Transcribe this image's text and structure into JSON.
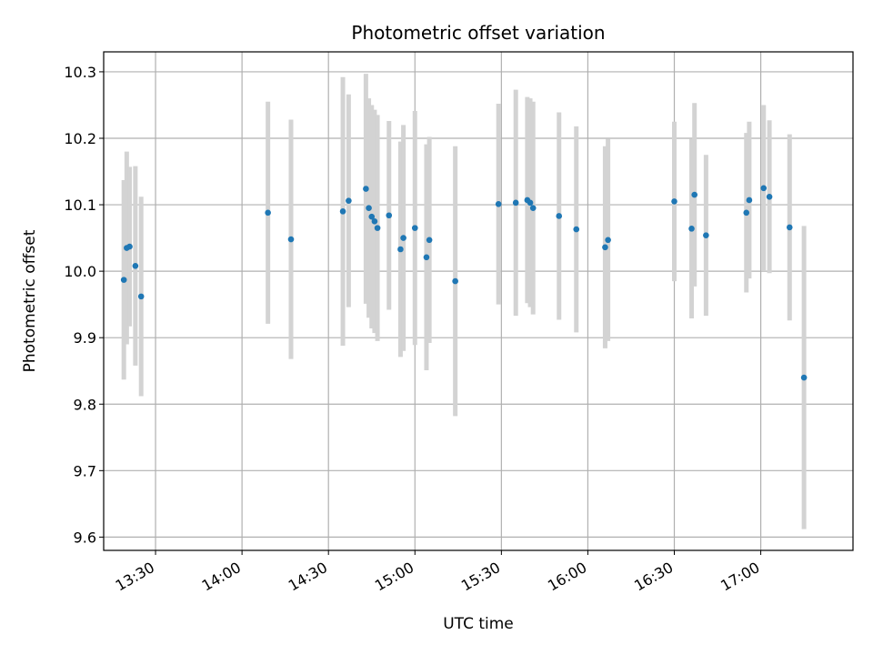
{
  "chart_data": {
    "type": "scatter",
    "title": "Photometric offset variation",
    "xlabel": "UTC time",
    "ylabel": "Photometric offset",
    "x_ticks": [
      "13:30",
      "14:00",
      "14:30",
      "15:00",
      "15:30",
      "16:00",
      "16:30",
      "17:00"
    ],
    "y_ticks": [
      "9.6",
      "9.7",
      "9.8",
      "9.9",
      "10.0",
      "10.1",
      "10.2",
      "10.3"
    ],
    "xlim": [
      "13:12",
      "17:32"
    ],
    "ylim": [
      9.58,
      10.33
    ],
    "grid": true,
    "colors": {
      "point": "#1f77b4",
      "errorbar": "#d3d3d3",
      "grid": "#b0b0b0"
    },
    "series": [
      {
        "points": [
          {
            "x": "13:19",
            "y": 9.987,
            "err": 0.15
          },
          {
            "x": "13:20",
            "y": 10.035,
            "err": 0.145
          },
          {
            "x": "13:21",
            "y": 10.037,
            "err": 0.12
          },
          {
            "x": "13:23",
            "y": 10.008,
            "err": 0.15
          },
          {
            "x": "13:25",
            "y": 9.962,
            "err": 0.15
          },
          {
            "x": "14:09",
            "y": 10.088,
            "err": 0.167
          },
          {
            "x": "14:17",
            "y": 10.048,
            "err": 0.18
          },
          {
            "x": "14:35",
            "y": 10.09,
            "err": 0.202
          },
          {
            "x": "14:37",
            "y": 10.106,
            "err": 0.16
          },
          {
            "x": "14:43",
            "y": 10.124,
            "err": 0.173
          },
          {
            "x": "14:44",
            "y": 10.095,
            "err": 0.165
          },
          {
            "x": "14:45",
            "y": 10.082,
            "err": 0.168
          },
          {
            "x": "14:46",
            "y": 10.075,
            "err": 0.168
          },
          {
            "x": "14:47",
            "y": 10.065,
            "err": 0.17
          },
          {
            "x": "14:51",
            "y": 10.084,
            "err": 0.142
          },
          {
            "x": "14:55",
            "y": 10.033,
            "err": 0.162
          },
          {
            "x": "14:56",
            "y": 10.05,
            "err": 0.17
          },
          {
            "x": "15:00",
            "y": 10.065,
            "err": 0.176
          },
          {
            "x": "15:04",
            "y": 10.021,
            "err": 0.17
          },
          {
            "x": "15:05",
            "y": 10.047,
            "err": 0.155
          },
          {
            "x": "15:14",
            "y": 9.985,
            "err": 0.203
          },
          {
            "x": "15:29",
            "y": 10.101,
            "err": 0.151
          },
          {
            "x": "15:35",
            "y": 10.103,
            "err": 0.17
          },
          {
            "x": "15:39",
            "y": 10.107,
            "err": 0.155
          },
          {
            "x": "15:40",
            "y": 10.103,
            "err": 0.157
          },
          {
            "x": "15:41",
            "y": 10.095,
            "err": 0.16
          },
          {
            "x": "15:50",
            "y": 10.083,
            "err": 0.156
          },
          {
            "x": "15:56",
            "y": 10.063,
            "err": 0.155
          },
          {
            "x": "16:06",
            "y": 10.036,
            "err": 0.152
          },
          {
            "x": "16:07",
            "y": 10.047,
            "err": 0.152
          },
          {
            "x": "16:30",
            "y": 10.105,
            "err": 0.12
          },
          {
            "x": "16:36",
            "y": 10.064,
            "err": 0.135
          },
          {
            "x": "16:37",
            "y": 10.115,
            "err": 0.138
          },
          {
            "x": "16:41",
            "y": 10.054,
            "err": 0.121
          },
          {
            "x": "16:55",
            "y": 10.088,
            "err": 0.12
          },
          {
            "x": "16:56",
            "y": 10.107,
            "err": 0.118
          },
          {
            "x": "17:01",
            "y": 10.125,
            "err": 0.125
          },
          {
            "x": "17:03",
            "y": 10.112,
            "err": 0.115
          },
          {
            "x": "17:10",
            "y": 10.066,
            "err": 0.14
          },
          {
            "x": "17:15",
            "y": 9.84,
            "err": 0.228
          }
        ]
      }
    ]
  }
}
